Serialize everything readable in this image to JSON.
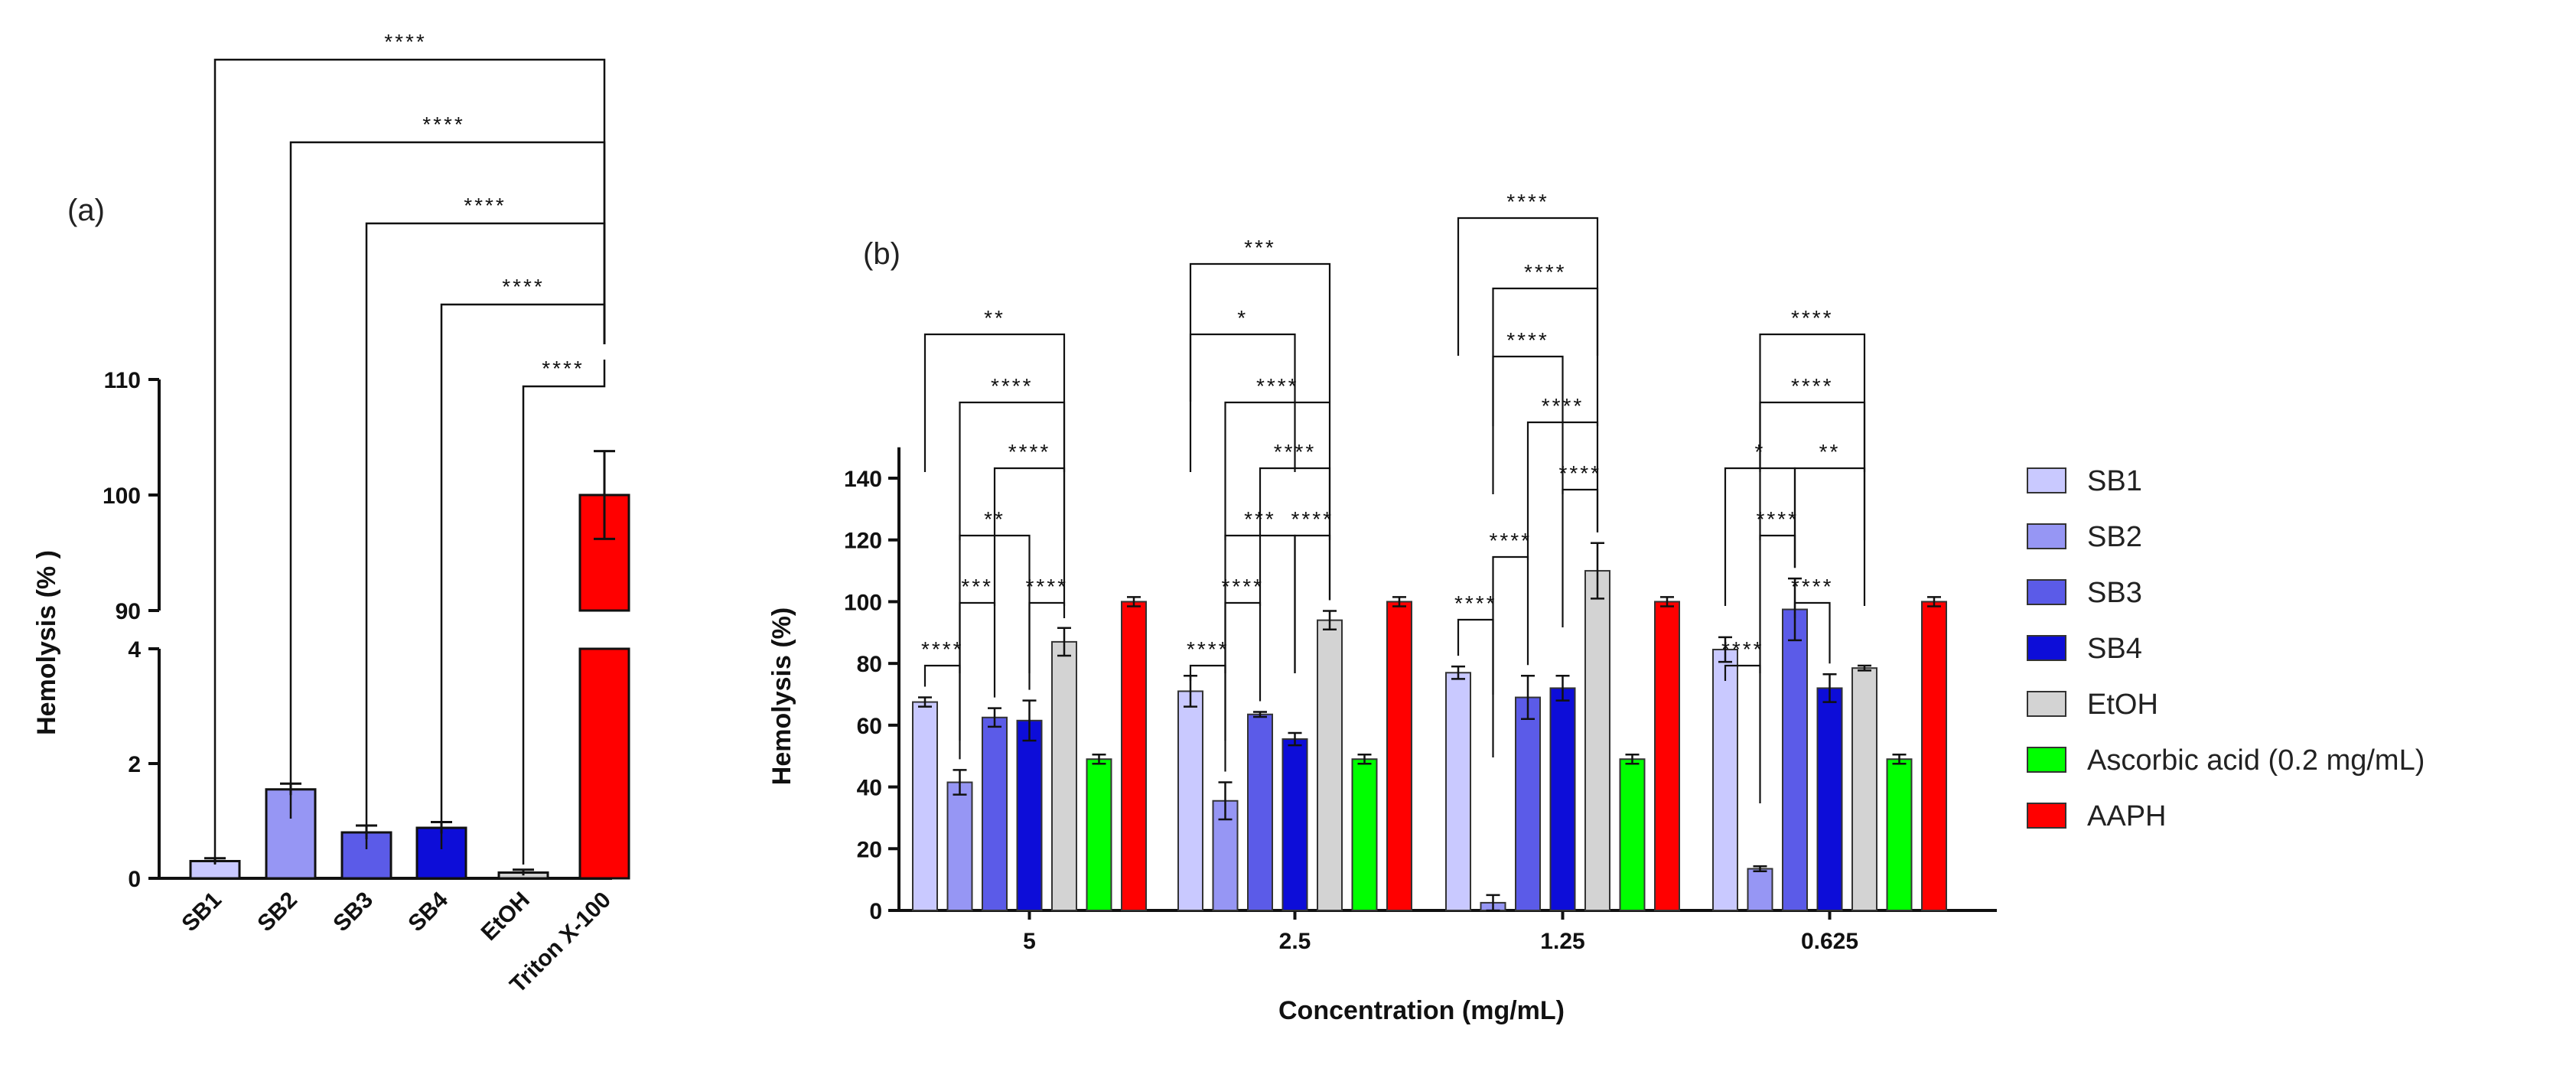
{
  "chart_data": [
    {
      "panel_label": "(a)",
      "type": "bar",
      "ylabel": "Hemolysis (% )",
      "categories": [
        "SB1",
        "SB2",
        "SB3",
        "SB4",
        "EtOH",
        "Triton X-100"
      ],
      "values": [
        0.3,
        1.55,
        0.8,
        0.88,
        0.1,
        100
      ],
      "errors": [
        0.05,
        0.1,
        0.12,
        0.1,
        0.05,
        3.8
      ],
      "colors": [
        "#c9c9ff",
        "#9696f4",
        "#5b5be8",
        "#0d0dd8",
        "#d3d3d3",
        "#ff0000"
      ],
      "y_axis_lower": {
        "range": [
          0,
          4
        ],
        "ticks": [
          0,
          2,
          4
        ],
        "tick_labels": [
          "0",
          "2",
          "4"
        ]
      },
      "y_axis_upper": {
        "range": [
          90,
          110
        ],
        "ticks": [
          90,
          100,
          110
        ],
        "tick_labels": [
          "90",
          "100",
          "110"
        ]
      },
      "significance": [
        {
          "from": 0,
          "to": 5,
          "label": "****"
        },
        {
          "from": 1,
          "to": 5,
          "label": "****"
        },
        {
          "from": 2,
          "to": 5,
          "label": "****"
        },
        {
          "from": 3,
          "to": 5,
          "label": "****"
        },
        {
          "from": 4,
          "to": 5,
          "label": "****"
        }
      ]
    },
    {
      "panel_label": "(b)",
      "type": "bar",
      "xlabel": "Concentration (mg/mL)",
      "ylabel": "Hemolysis (%)",
      "ylim": [
        0,
        150
      ],
      "yticks": [
        0,
        20,
        40,
        60,
        80,
        100,
        120,
        140
      ],
      "ytick_labels": [
        "0",
        "20",
        "40",
        "60",
        "80",
        "100",
        "120",
        "140"
      ],
      "categories": [
        "5",
        "2.5",
        "1.25",
        "0.625"
      ],
      "series": [
        {
          "name": "SB1",
          "color": "#c9c9ff",
          "values": [
            67.5,
            71,
            77,
            84.5
          ],
          "errors": [
            1.5,
            5,
            2,
            4
          ]
        },
        {
          "name": "SB2",
          "color": "#9696f4",
          "values": [
            41.5,
            35.5,
            2.5,
            13.5
          ],
          "errors": [
            4,
            6,
            2.5,
            0.8
          ]
        },
        {
          "name": "SB3",
          "color": "#5b5be8",
          "values": [
            62.5,
            63.5,
            69,
            97.5
          ],
          "errors": [
            3,
            0.8,
            7,
            10
          ]
        },
        {
          "name": "SB4",
          "color": "#0d0dd8",
          "values": [
            61.5,
            55.5,
            72,
            72
          ],
          "errors": [
            6.5,
            2,
            4,
            4.5
          ]
        },
        {
          "name": "EtOH",
          "color": "#d3d3d3",
          "values": [
            87,
            94,
            110,
            78.5
          ],
          "errors": [
            4.5,
            3,
            9,
            0.8
          ]
        },
        {
          "name": "Ascorbic acid (0.2 mg/mL)",
          "color": "#00ff00",
          "values": [
            49,
            49,
            49,
            49
          ],
          "errors": [
            1.5,
            1.5,
            1.5,
            1.5
          ]
        },
        {
          "name": "AAPH",
          "color": "#ff0000",
          "values": [
            100,
            100,
            100,
            100
          ],
          "errors": [
            1.5,
            1.5,
            1.5,
            1.5
          ]
        }
      ],
      "significance": [
        {
          "group": 0,
          "from": 0,
          "to": 1,
          "label": "****",
          "level": 0
        },
        {
          "group": 0,
          "from": 1,
          "to": 2,
          "label": "***",
          "level": 1
        },
        {
          "group": 0,
          "from": 1,
          "to": 3,
          "label": "**",
          "level": 2
        },
        {
          "group": 0,
          "from": 3,
          "to": 4,
          "label": "****",
          "level": 1
        },
        {
          "group": 0,
          "from": 2,
          "to": 4,
          "label": "****",
          "level": 3
        },
        {
          "group": 0,
          "from": 1,
          "to": 4,
          "label": "****",
          "level": 4
        },
        {
          "group": 0,
          "from": 0,
          "to": 4,
          "label": "**",
          "level": 5
        },
        {
          "group": 1,
          "from": 0,
          "to": 1,
          "label": "****",
          "level": 0
        },
        {
          "group": 1,
          "from": 1,
          "to": 2,
          "label": "****",
          "level": 1
        },
        {
          "group": 1,
          "from": 1,
          "to": 3,
          "label": "***",
          "level": 2
        },
        {
          "group": 1,
          "from": 3,
          "to": 4,
          "label": "****",
          "level": 2
        },
        {
          "group": 1,
          "from": 2,
          "to": 4,
          "label": "****",
          "level": 3
        },
        {
          "group": 1,
          "from": 1,
          "to": 4,
          "label": "****",
          "level": 4
        },
        {
          "group": 1,
          "from": 0,
          "to": 3,
          "label": "*",
          "level": 5
        },
        {
          "group": 1,
          "from": 0,
          "to": 4,
          "label": "***",
          "level": 6
        },
        {
          "group": 2,
          "from": 0,
          "to": 1,
          "label": "****",
          "level": 0
        },
        {
          "group": 2,
          "from": 1,
          "to": 2,
          "label": "****",
          "level": 1
        },
        {
          "group": 2,
          "from": 3,
          "to": 4,
          "label": "****",
          "level": 2
        },
        {
          "group": 2,
          "from": 2,
          "to": 4,
          "label": "****",
          "level": 3
        },
        {
          "group": 2,
          "from": 1,
          "to": 3,
          "label": "****",
          "level": 4
        },
        {
          "group": 2,
          "from": 1,
          "to": 4,
          "label": "****",
          "level": 5
        },
        {
          "group": 2,
          "from": 0,
          "to": 4,
          "label": "****",
          "level": 6
        },
        {
          "group": 3,
          "from": 0,
          "to": 1,
          "label": "****",
          "level": 0
        },
        {
          "group": 3,
          "from": 2,
          "to": 3,
          "label": "****",
          "level": 1
        },
        {
          "group": 3,
          "from": 1,
          "to": 2,
          "label": "****",
          "level": 2
        },
        {
          "group": 3,
          "from": 2,
          "to": 4,
          "label": "**",
          "level": 3
        },
        {
          "group": 3,
          "from": 0,
          "to": 2,
          "label": "*",
          "level": 3
        },
        {
          "group": 3,
          "from": 1,
          "to": 4,
          "label": "****",
          "level": 4
        },
        {
          "group": 3,
          "from": 1,
          "to": 4,
          "label": "****",
          "level": 5
        }
      ]
    }
  ]
}
